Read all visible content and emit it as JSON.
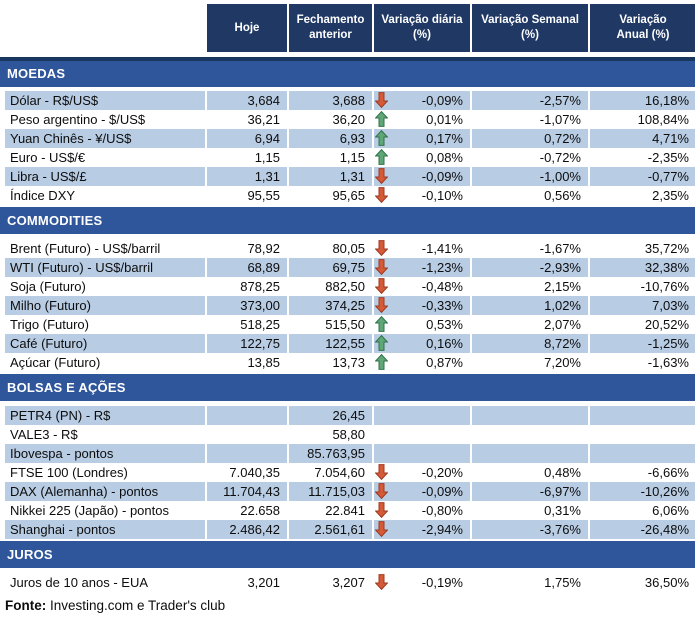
{
  "chart_data": {
    "type": "table",
    "columns": [
      "Hoje",
      "Fechamento\nanterior",
      "Variação diária\n(%)",
      "Variação Semanal\n(%)",
      "Variação\nAnual (%)"
    ],
    "sections": [
      {
        "title": "MOEDAS",
        "first_shaded": true,
        "rows": [
          {
            "label": "Dólar - R$/US$",
            "hoje": "3,684",
            "fechamento": "3,688",
            "arrow": "down",
            "var_diaria": "-0,09%",
            "var_semanal": "-2,57%",
            "var_anual": "16,18%"
          },
          {
            "label": "Peso argentino - $/US$",
            "hoje": "36,21",
            "fechamento": "36,20",
            "arrow": "up",
            "var_diaria": "0,01%",
            "var_semanal": "-1,07%",
            "var_anual": "108,84%"
          },
          {
            "label": "Yuan Chinês - ¥/US$",
            "hoje": "6,94",
            "fechamento": "6,93",
            "arrow": "up",
            "var_diaria": "0,17%",
            "var_semanal": "0,72%",
            "var_anual": "4,71%"
          },
          {
            "label": "Euro - US$/€",
            "hoje": "1,15",
            "fechamento": "1,15",
            "arrow": "up",
            "var_diaria": "0,08%",
            "var_semanal": "-0,72%",
            "var_anual": "-2,35%"
          },
          {
            "label": "Libra - US$/£",
            "hoje": "1,31",
            "fechamento": "1,31",
            "arrow": "down",
            "var_diaria": "-0,09%",
            "var_semanal": "-1,00%",
            "var_anual": "-0,77%"
          },
          {
            "label": "Índice DXY",
            "hoje": "95,55",
            "fechamento": "95,65",
            "arrow": "down",
            "var_diaria": "-0,10%",
            "var_semanal": "0,56%",
            "var_anual": "2,35%"
          }
        ]
      },
      {
        "title": "COMMODITIES",
        "first_shaded": false,
        "rows": [
          {
            "label": "Brent (Futuro) - US$/barril",
            "hoje": "78,92",
            "fechamento": "80,05",
            "arrow": "down",
            "var_diaria": "-1,41%",
            "var_semanal": "-1,67%",
            "var_anual": "35,72%"
          },
          {
            "label": "WTI (Futuro) - US$/barril",
            "hoje": "68,89",
            "fechamento": "69,75",
            "arrow": "down",
            "var_diaria": "-1,23%",
            "var_semanal": "-2,93%",
            "var_anual": "32,38%"
          },
          {
            "label": "Soja (Futuro)",
            "hoje": "878,25",
            "fechamento": "882,50",
            "arrow": "down",
            "var_diaria": "-0,48%",
            "var_semanal": "2,15%",
            "var_anual": "-10,76%"
          },
          {
            "label": "Milho (Futuro)",
            "hoje": "373,00",
            "fechamento": "374,25",
            "arrow": "down",
            "var_diaria": "-0,33%",
            "var_semanal": "1,02%",
            "var_anual": "7,03%"
          },
          {
            "label": "Trigo (Futuro)",
            "hoje": "518,25",
            "fechamento": "515,50",
            "arrow": "up",
            "var_diaria": "0,53%",
            "var_semanal": "2,07%",
            "var_anual": "20,52%"
          },
          {
            "label": "Café (Futuro)",
            "hoje": "122,75",
            "fechamento": "122,55",
            "arrow": "up",
            "var_diaria": "0,16%",
            "var_semanal": "8,72%",
            "var_anual": "-1,25%"
          },
          {
            "label": "Açúcar (Futuro)",
            "hoje": "13,85",
            "fechamento": "13,73",
            "arrow": "up",
            "var_diaria": "0,87%",
            "var_semanal": "7,20%",
            "var_anual": "-1,63%"
          }
        ]
      },
      {
        "title": "BOLSAS E AÇÕES",
        "first_shaded": true,
        "rows": [
          {
            "label": "PETR4 (PN) - R$",
            "hoje": "",
            "fechamento": "26,45",
            "arrow": "",
            "var_diaria": "",
            "var_semanal": "",
            "var_anual": ""
          },
          {
            "label": "VALE3 - R$",
            "hoje": "",
            "fechamento": "58,80",
            "arrow": "",
            "var_diaria": "",
            "var_semanal": "",
            "var_anual": ""
          },
          {
            "label": "Ibovespa - pontos",
            "hoje": "",
            "fechamento": "85.763,95",
            "arrow": "",
            "var_diaria": "",
            "var_semanal": "",
            "var_anual": ""
          },
          {
            "label": "FTSE 100 (Londres)",
            "hoje": "7.040,35",
            "fechamento": "7.054,60",
            "arrow": "down",
            "var_diaria": "-0,20%",
            "var_semanal": "0,48%",
            "var_anual": "-6,66%"
          },
          {
            "label": "DAX (Alemanha) - pontos",
            "hoje": "11.704,43",
            "fechamento": "11.715,03",
            "arrow": "down",
            "var_diaria": "-0,09%",
            "var_semanal": "-6,97%",
            "var_anual": "-10,26%"
          },
          {
            "label": "Nikkei 225 (Japão) - pontos",
            "hoje": "22.658",
            "fechamento": "22.841",
            "arrow": "down",
            "var_diaria": "-0,80%",
            "var_semanal": "0,31%",
            "var_anual": "6,06%"
          },
          {
            "label": "Shanghai - pontos",
            "hoje": "2.486,42",
            "fechamento": "2.561,61",
            "arrow": "down",
            "var_diaria": "-2,94%",
            "var_semanal": "-3,76%",
            "var_anual": "-26,48%"
          }
        ]
      },
      {
        "title": "JUROS",
        "first_shaded": false,
        "rows": [
          {
            "label": "Juros de 10 anos - EUA",
            "hoje": "3,201",
            "fechamento": "3,207",
            "arrow": "down",
            "var_diaria": "-0,19%",
            "var_semanal": "1,75%",
            "var_anual": "36,50%"
          }
        ]
      }
    ]
  },
  "footer": {
    "label": "Fonte:",
    "text": " Investing.com e Trader's club"
  },
  "colors": {
    "header_bg": "#1F3864",
    "band_bg": "#2F559B",
    "band_border": "#17375E",
    "row_shade": "#B8CCE4",
    "header_text": "#FFFFFF",
    "text": "#0d0d0d",
    "arrow_up_fill": "#5FA777",
    "arrow_up_stroke": "#31724B",
    "arrow_down_fill": "#D55B38",
    "arrow_down_stroke": "#9E3A21"
  }
}
